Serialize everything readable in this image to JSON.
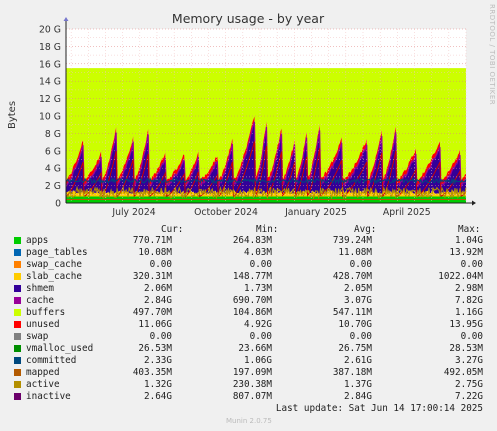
{
  "chart_data": {
    "type": "area",
    "title": "Memory usage - by year",
    "ylabel": "Bytes",
    "ylim": [
      0,
      20
    ],
    "y_unit": "G",
    "yticks": [
      "0",
      "2 G",
      "4 G",
      "6 G",
      "8 G",
      "10 G",
      "12 G",
      "14 G",
      "16 G",
      "18 G",
      "20 G"
    ],
    "xticks": [
      "July 2024",
      "October 2024",
      "January 2025",
      "April 2025"
    ],
    "grid": true,
    "legend_columns": [
      "Cur:",
      "Min:",
      "Avg:",
      "Max:"
    ],
    "series": [
      {
        "name": "apps",
        "color": "#00cc00",
        "cur": "770.71M",
        "min": "264.83M",
        "avg": "739.24M",
        "max": "1.04G"
      },
      {
        "name": "page_tables",
        "color": "#0066b3",
        "cur": "10.08M",
        "min": "4.03M",
        "avg": "11.08M",
        "max": "13.92M"
      },
      {
        "name": "swap_cache",
        "color": "#ff8000",
        "cur": "0.00",
        "min": "0.00",
        "avg": "0.00",
        "max": "0.00"
      },
      {
        "name": "slab_cache",
        "color": "#ffcc00",
        "cur": "320.31M",
        "min": "148.77M",
        "avg": "428.70M",
        "max": "1022.04M"
      },
      {
        "name": "shmem",
        "color": "#330099",
        "cur": "2.06M",
        "min": "1.73M",
        "avg": "2.05M",
        "max": "2.98M"
      },
      {
        "name": "cache",
        "color": "#990099",
        "cur": "2.84G",
        "min": "690.70M",
        "avg": "3.07G",
        "max": "7.82G"
      },
      {
        "name": "buffers",
        "color": "#ccff00",
        "cur": "497.70M",
        "min": "104.86M",
        "avg": "547.11M",
        "max": "1.16G"
      },
      {
        "name": "unused",
        "color": "#ff0000",
        "cur": "11.06G",
        "min": "4.92G",
        "avg": "10.70G",
        "max": "13.95G"
      },
      {
        "name": "swap",
        "color": "#808080",
        "cur": "0.00",
        "min": "0.00",
        "avg": "0.00",
        "max": "0.00"
      },
      {
        "name": "vmalloc_used",
        "color": "#008f00",
        "cur": "26.53M",
        "min": "23.66M",
        "avg": "26.75M",
        "max": "28.53M"
      },
      {
        "name": "committed",
        "color": "#00487d",
        "cur": "2.33G",
        "min": "1.06G",
        "avg": "2.61G",
        "max": "3.27G"
      },
      {
        "name": "mapped",
        "color": "#b35a00",
        "cur": "403.35M",
        "min": "197.09M",
        "avg": "387.18M",
        "max": "492.05M"
      },
      {
        "name": "active",
        "color": "#b38f00",
        "cur": "1.32G",
        "min": "230.38M",
        "avg": "1.37G",
        "max": "2.75G"
      },
      {
        "name": "inactive",
        "color": "#6b006b",
        "cur": "2.64G",
        "min": "807.07M",
        "avg": "2.84G",
        "max": "7.22G"
      }
    ],
    "total_memory_g": 15.5,
    "last_update": "Last update: Sat Jun 14 17:00:14 2025",
    "watermark": "Munin 2.0.75",
    "side_label": "RRDTOOL / TOBI OETIKER"
  }
}
